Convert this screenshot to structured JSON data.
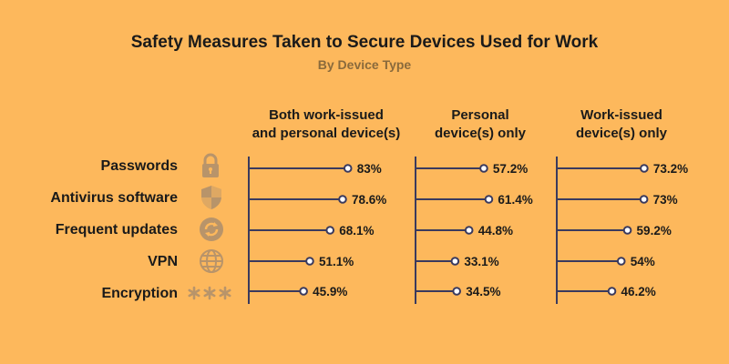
{
  "chart_data": {
    "type": "lollipop",
    "title": "Safety Measures Taken to Secure Devices Used for Work",
    "subtitle": "By Device Type",
    "categories": [
      "Passwords",
      "Antivirus software",
      "Frequent updates",
      "VPN",
      "Encryption"
    ],
    "icons": [
      "lock-icon",
      "shield-icon",
      "refresh-icon",
      "globe-icon",
      "asterisks-icon"
    ],
    "series": [
      {
        "name": "Both work-issued\nand personal device(s)",
        "values": [
          83,
          78.6,
          68.1,
          51.1,
          45.9
        ],
        "labels": [
          "83%",
          "78.6%",
          "68.1%",
          "51.1%",
          "45.9%"
        ]
      },
      {
        "name": "Personal\ndevice(s) only",
        "values": [
          57.2,
          61.4,
          44.8,
          33.1,
          34.5
        ],
        "labels": [
          "57.2%",
          "61.4%",
          "44.8%",
          "33.1%",
          "34.5%"
        ]
      },
      {
        "name": "Work-issued\ndevice(s) only",
        "values": [
          73.2,
          73,
          59.2,
          54,
          46.2
        ],
        "labels": [
          "73.2%",
          "73%",
          "59.2%",
          "54%",
          "46.2%"
        ]
      }
    ],
    "colors": {
      "background": "#FDB85C",
      "line": "#3A3A5E",
      "marker_fill": "#FFFFFF",
      "icon": "#B8946A",
      "subtitle": "#8a6a3c"
    }
  }
}
